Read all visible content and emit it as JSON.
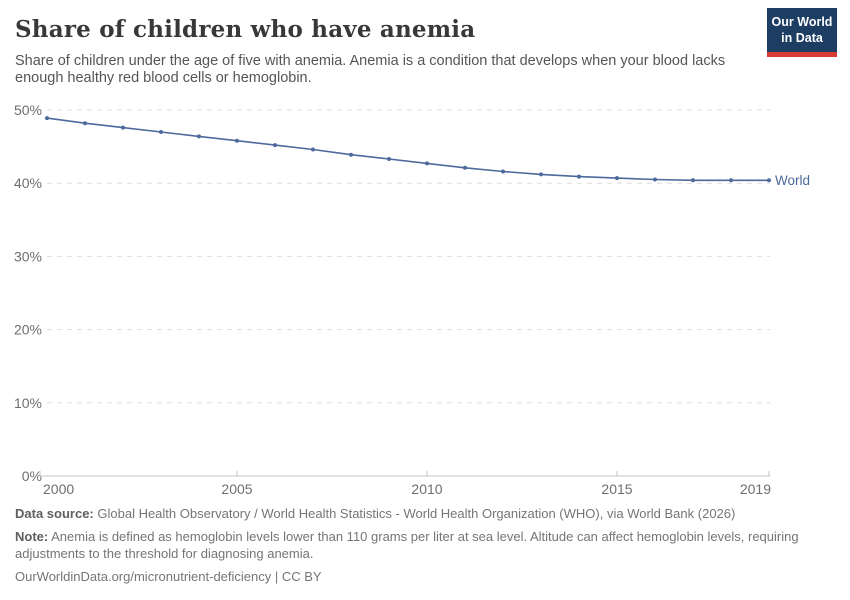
{
  "header": {
    "title": "Share of children who have anemia",
    "subtitle": "Share of children under the age of five with anemia. Anemia is a condition that develops when your blood lacks enough healthy red blood cells or hemoglobin.",
    "logo": {
      "line1": "Our World",
      "line2": "in Data",
      "bg_color": "#1d3d63",
      "accent_color": "#d93a32"
    }
  },
  "chart_data": {
    "type": "line",
    "title": "Share of children who have anemia",
    "x": [
      2000,
      2001,
      2002,
      2003,
      2004,
      2005,
      2006,
      2007,
      2008,
      2009,
      2010,
      2011,
      2012,
      2013,
      2014,
      2015,
      2016,
      2017,
      2018,
      2019
    ],
    "series": [
      {
        "name": "World",
        "color": "#4c6a9c",
        "values": [
          48.9,
          48.2,
          47.6,
          47.0,
          46.4,
          45.8,
          45.2,
          44.6,
          43.9,
          43.3,
          42.7,
          42.1,
          41.6,
          41.2,
          40.9,
          40.7,
          40.5,
          40.4,
          40.4,
          40.4
        ]
      }
    ],
    "xlabel": "",
    "ylabel": "",
    "ylim": [
      0,
      50
    ],
    "yticks": [
      "0%",
      "10%",
      "20%",
      "30%",
      "40%",
      "50%"
    ],
    "xticks": [
      2000,
      2005,
      2010,
      2015,
      2019
    ],
    "grid": "horizontal-dashed",
    "legend_position": "end-of-line",
    "marker": "dot"
  },
  "footer": {
    "data_source_label": "Data source:",
    "data_source": "Global Health Observatory / World Health Statistics - World Health Organization (WHO), via World Bank (2026)",
    "note_label": "Note:",
    "note": "Anemia is defined as hemoglobin levels lower than 110 grams per liter at sea level. Altitude can affect hemoglobin levels, requiring adjustments to the threshold for diagnosing anemia.",
    "link": "OurWorldinData.org/micronutrient-deficiency | CC BY"
  }
}
